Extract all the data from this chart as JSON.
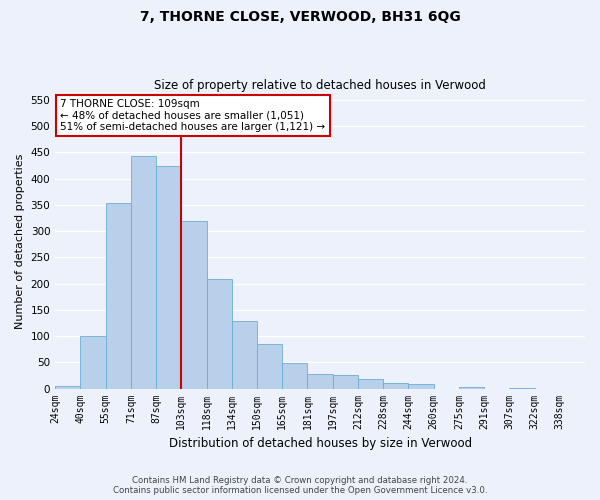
{
  "title": "7, THORNE CLOSE, VERWOOD, BH31 6QG",
  "subtitle": "Size of property relative to detached houses in Verwood",
  "xlabel": "Distribution of detached houses by size in Verwood",
  "ylabel": "Number of detached properties",
  "bar_labels": [
    "24sqm",
    "40sqm",
    "55sqm",
    "71sqm",
    "87sqm",
    "103sqm",
    "118sqm",
    "134sqm",
    "150sqm",
    "165sqm",
    "181sqm",
    "197sqm",
    "212sqm",
    "228sqm",
    "244sqm",
    "260sqm",
    "275sqm",
    "291sqm",
    "307sqm",
    "322sqm",
    "338sqm"
  ],
  "bar_values": [
    5,
    100,
    353,
    443,
    423,
    320,
    208,
    128,
    85,
    48,
    27,
    25,
    19,
    10,
    8,
    0,
    3,
    0,
    2,
    0
  ],
  "bar_color": "#b8d0ea",
  "bar_edge_color": "#6aaed6",
  "vline_color": "#cc0000",
  "vline_pos": 5.0,
  "ylim_max": 560,
  "yticks": [
    0,
    50,
    100,
    150,
    200,
    250,
    300,
    350,
    400,
    450,
    500,
    550
  ],
  "annotation_title": "7 THORNE CLOSE: 109sqm",
  "annotation_line1": "← 48% of detached houses are smaller (1,051)",
  "annotation_line2": "51% of semi-detached houses are larger (1,121) →",
  "annotation_box_facecolor": "#ffffff",
  "annotation_box_edgecolor": "#cc0000",
  "footer_line1": "Contains HM Land Registry data © Crown copyright and database right 2024.",
  "footer_line2": "Contains public sector information licensed under the Open Government Licence v3.0.",
  "bg_color": "#edf1fb",
  "grid_color": "#ffffff",
  "title_fontsize": 10,
  "subtitle_fontsize": 8.5,
  "ylabel_fontsize": 8,
  "xlabel_fontsize": 8.5,
  "tick_fontsize": 7,
  "annotation_fontsize": 7.5,
  "footer_fontsize": 6.2
}
